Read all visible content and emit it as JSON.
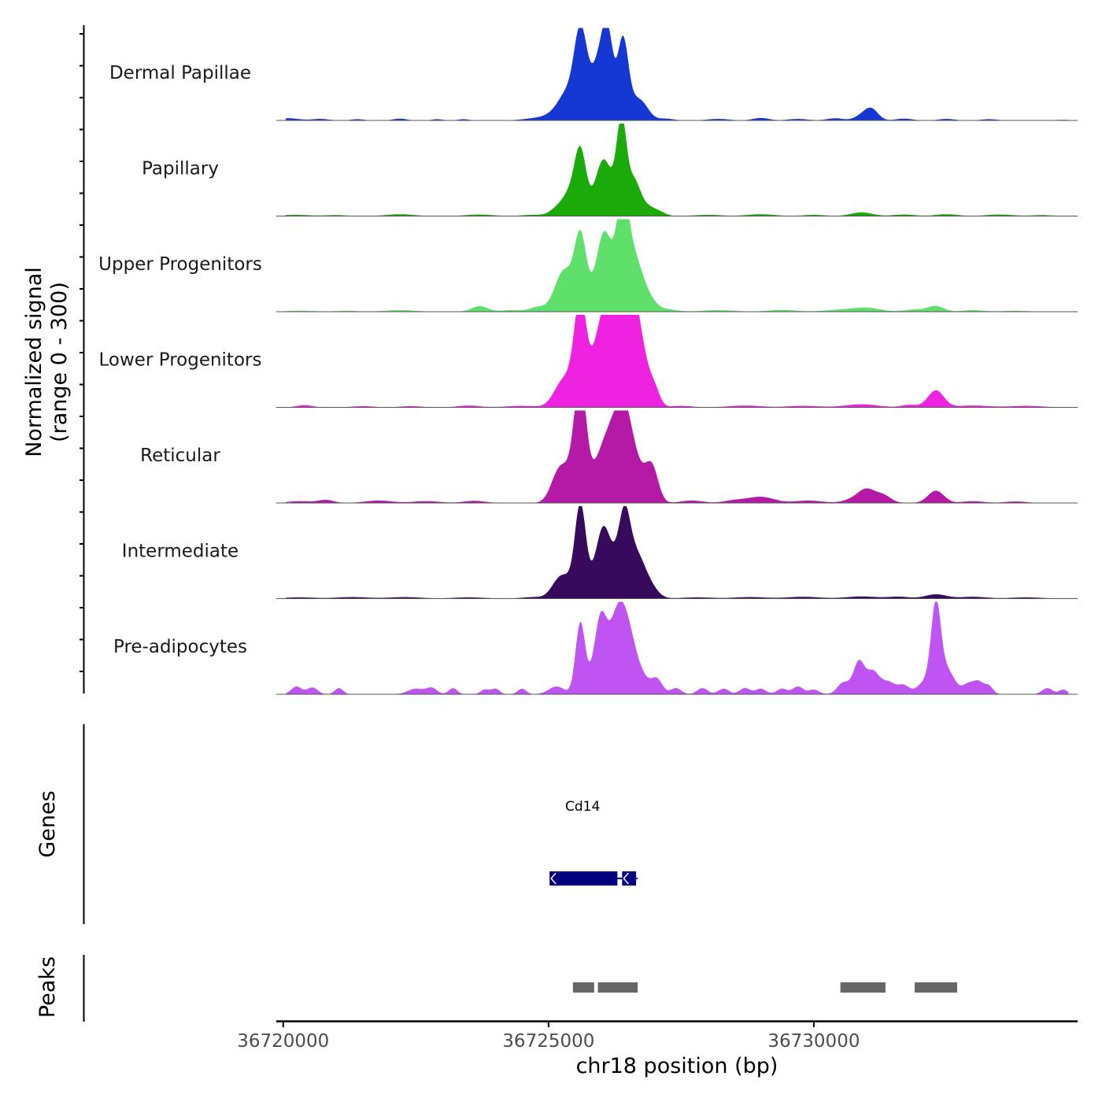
{
  "chart_data": {
    "type": "area",
    "title": "",
    "ylabel_line1": "Normalized signal",
    "ylabel_line2": "(range 0 - 300)",
    "ylim": [
      0,
      300
    ],
    "xlabel": "chr18 position (bp)",
    "x_range": [
      36719870,
      36734970
    ],
    "x_ticks": [
      36720000,
      36725000,
      36730000
    ],
    "x_tick_labels": [
      "36720000",
      "36725000",
      "36730000"
    ],
    "series": [
      {
        "name": "Dermal Papillae",
        "color": "#1537d4",
        "bumps": [
          [
            36720100,
            200,
            7
          ],
          [
            36720700,
            150,
            5
          ],
          [
            36721400,
            120,
            4
          ],
          [
            36722200,
            120,
            6
          ],
          [
            36722900,
            100,
            4
          ],
          [
            36723400,
            100,
            4
          ],
          [
            36724700,
            200,
            6
          ],
          [
            36725150,
            200,
            25
          ],
          [
            36725350,
            150,
            70
          ],
          [
            36725600,
            120,
            270
          ],
          [
            36725850,
            150,
            90
          ],
          [
            36726000,
            120,
            140
          ],
          [
            36726130,
            100,
            210
          ],
          [
            36726400,
            100,
            250
          ],
          [
            36726620,
            150,
            55
          ],
          [
            36726800,
            130,
            30
          ],
          [
            36727200,
            150,
            6
          ],
          [
            36728200,
            200,
            5
          ],
          [
            36729000,
            150,
            8
          ],
          [
            36729700,
            180,
            5
          ],
          [
            36730400,
            150,
            7
          ],
          [
            36730950,
            150,
            20
          ],
          [
            36731100,
            120,
            28
          ],
          [
            36731700,
            150,
            6
          ],
          [
            36732500,
            150,
            5
          ],
          [
            36733300,
            150,
            4
          ],
          [
            36734700,
            150,
            2
          ]
        ]
      },
      {
        "name": "Papillary",
        "color": "#1aaa0a",
        "bumps": [
          [
            36720200,
            300,
            4
          ],
          [
            36721000,
            200,
            3
          ],
          [
            36722200,
            250,
            6
          ],
          [
            36723700,
            250,
            5
          ],
          [
            36724700,
            200,
            4
          ],
          [
            36725200,
            150,
            30
          ],
          [
            36725400,
            120,
            55
          ],
          [
            36725600,
            110,
            210
          ],
          [
            36725900,
            120,
            60
          ],
          [
            36726050,
            120,
            140
          ],
          [
            36726250,
            120,
            65
          ],
          [
            36726380,
            90,
            270
          ],
          [
            36726600,
            120,
            110
          ],
          [
            36726850,
            150,
            30
          ],
          [
            36727100,
            120,
            10
          ],
          [
            36728000,
            250,
            4
          ],
          [
            36729000,
            250,
            6
          ],
          [
            36730000,
            200,
            4
          ],
          [
            36730900,
            200,
            12
          ],
          [
            36731700,
            200,
            5
          ],
          [
            36732500,
            200,
            6
          ],
          [
            36733500,
            250,
            5
          ],
          [
            36734300,
            200,
            3
          ]
        ]
      },
      {
        "name": "Upper Progenitors",
        "color": "#5ee06a",
        "bumps": [
          [
            36720300,
            300,
            3
          ],
          [
            36721200,
            200,
            3
          ],
          [
            36722200,
            300,
            5
          ],
          [
            36723700,
            150,
            18
          ],
          [
            36724300,
            200,
            5
          ],
          [
            36724800,
            150,
            15
          ],
          [
            36725200,
            150,
            60
          ],
          [
            36725350,
            150,
            90
          ],
          [
            36725600,
            110,
            230
          ],
          [
            36725900,
            150,
            80
          ],
          [
            36726050,
            120,
            170
          ],
          [
            36726250,
            150,
            100
          ],
          [
            36726400,
            110,
            260
          ],
          [
            36726600,
            150,
            160
          ],
          [
            36726850,
            150,
            45
          ],
          [
            36727200,
            200,
            8
          ],
          [
            36728200,
            300,
            5
          ],
          [
            36729400,
            250,
            6
          ],
          [
            36730500,
            300,
            6
          ],
          [
            36731000,
            250,
            12
          ],
          [
            36731900,
            200,
            7
          ],
          [
            36732300,
            150,
            18
          ],
          [
            36733000,
            200,
            5
          ],
          [
            36733800,
            250,
            3
          ]
        ]
      },
      {
        "name": "Lower Progenitors",
        "color": "#f022e2",
        "bumps": [
          [
            36720400,
            150,
            7
          ],
          [
            36721500,
            200,
            4
          ],
          [
            36722400,
            200,
            4
          ],
          [
            36723500,
            200,
            6
          ],
          [
            36724500,
            300,
            5
          ],
          [
            36725200,
            150,
            50
          ],
          [
            36725400,
            150,
            70
          ],
          [
            36725600,
            110,
            320
          ],
          [
            36725900,
            150,
            85
          ],
          [
            36726100,
            200,
            180
          ],
          [
            36726300,
            200,
            260
          ],
          [
            36726450,
            120,
            360
          ],
          [
            36726650,
            150,
            200
          ],
          [
            36726800,
            120,
            60
          ],
          [
            36727000,
            100,
            55
          ],
          [
            36727500,
            200,
            5
          ],
          [
            36728700,
            300,
            6
          ],
          [
            36729800,
            300,
            5
          ],
          [
            36730900,
            300,
            10
          ],
          [
            36731800,
            150,
            8
          ],
          [
            36732300,
            150,
            55
          ],
          [
            36733000,
            300,
            6
          ],
          [
            36734000,
            300,
            5
          ]
        ]
      },
      {
        "name": "Reticular",
        "color": "#b41aa6",
        "bumps": [
          [
            36720300,
            200,
            6
          ],
          [
            36720800,
            150,
            10
          ],
          [
            36721800,
            250,
            8
          ],
          [
            36722700,
            250,
            6
          ],
          [
            36723600,
            200,
            7
          ],
          [
            36725200,
            150,
            100
          ],
          [
            36725450,
            150,
            70
          ],
          [
            36725600,
            110,
            350
          ],
          [
            36725850,
            150,
            60
          ],
          [
            36726050,
            150,
            120
          ],
          [
            36726250,
            150,
            155
          ],
          [
            36726450,
            150,
            240
          ],
          [
            36726700,
            150,
            80
          ],
          [
            36726950,
            120,
            110
          ],
          [
            36727700,
            200,
            8
          ],
          [
            36728500,
            200,
            8
          ],
          [
            36729000,
            250,
            20
          ],
          [
            36729900,
            250,
            8
          ],
          [
            36730800,
            200,
            15
          ],
          [
            36731000,
            150,
            35
          ],
          [
            36731300,
            150,
            25
          ],
          [
            36732300,
            150,
            40
          ],
          [
            36733000,
            200,
            6
          ],
          [
            36733800,
            200,
            5
          ]
        ]
      },
      {
        "name": "Intermediate",
        "color": "#380a5e",
        "bumps": [
          [
            36720300,
            300,
            4
          ],
          [
            36721300,
            300,
            5
          ],
          [
            36722300,
            300,
            5
          ],
          [
            36723500,
            300,
            4
          ],
          [
            36724700,
            200,
            5
          ],
          [
            36725200,
            150,
            55
          ],
          [
            36725400,
            150,
            40
          ],
          [
            36725600,
            100,
            280
          ],
          [
            36725850,
            150,
            60
          ],
          [
            36726030,
            120,
            180
          ],
          [
            36726220,
            120,
            90
          ],
          [
            36726430,
            110,
            240
          ],
          [
            36726650,
            150,
            130
          ],
          [
            36726900,
            150,
            40
          ],
          [
            36727800,
            300,
            4
          ],
          [
            36728800,
            300,
            5
          ],
          [
            36729800,
            300,
            6
          ],
          [
            36730900,
            300,
            7
          ],
          [
            36731600,
            200,
            6
          ],
          [
            36732300,
            200,
            14
          ],
          [
            36733000,
            250,
            6
          ],
          [
            36734000,
            300,
            4
          ]
        ]
      },
      {
        "name": "Pre-adipocytes",
        "color": "#c054f2",
        "bumps": [
          [
            36720250,
            100,
            25
          ],
          [
            36720550,
            100,
            22
          ],
          [
            36721050,
            80,
            20
          ],
          [
            36722500,
            150,
            18
          ],
          [
            36722800,
            100,
            20
          ],
          [
            36723200,
            80,
            20
          ],
          [
            36723800,
            80,
            15
          ],
          [
            36724000,
            80,
            18
          ],
          [
            36724500,
            80,
            18
          ],
          [
            36725150,
            150,
            25
          ],
          [
            36725600,
            90,
            230
          ],
          [
            36725900,
            120,
            100
          ],
          [
            36726000,
            100,
            140
          ],
          [
            36726200,
            150,
            120
          ],
          [
            36726350,
            150,
            150
          ],
          [
            36726500,
            150,
            110
          ],
          [
            36726700,
            200,
            60
          ],
          [
            36727050,
            100,
            40
          ],
          [
            36727400,
            100,
            20
          ],
          [
            36727900,
            100,
            20
          ],
          [
            36728300,
            100,
            18
          ],
          [
            36728700,
            100,
            20
          ],
          [
            36729000,
            100,
            18
          ],
          [
            36729400,
            100,
            18
          ],
          [
            36729700,
            100,
            25
          ],
          [
            36730000,
            100,
            15
          ],
          [
            36730500,
            100,
            12
          ],
          [
            36730600,
            120,
            30
          ],
          [
            36730850,
            100,
            100
          ],
          [
            36731100,
            120,
            70
          ],
          [
            36731400,
            150,
            40
          ],
          [
            36731700,
            100,
            25
          ],
          [
            36732100,
            150,
            40
          ],
          [
            36732300,
            90,
            260
          ],
          [
            36732500,
            150,
            80
          ],
          [
            36732900,
            100,
            30
          ],
          [
            36733100,
            100,
            40
          ],
          [
            36733300,
            80,
            25
          ],
          [
            36734400,
            100,
            20
          ],
          [
            36734700,
            80,
            15
          ]
        ]
      }
    ],
    "genes": {
      "label": "Genes",
      "items": [
        {
          "name": "Cd14",
          "start": 36725020,
          "end": 36726680,
          "color": "#000080"
        }
      ]
    },
    "peaks": {
      "label": "Peaks",
      "color": "#666666",
      "items": [
        [
          36725460,
          36725860
        ],
        [
          36725930,
          36726680
        ],
        [
          36730500,
          36731350
        ],
        [
          36731900,
          36732700
        ]
      ]
    }
  }
}
